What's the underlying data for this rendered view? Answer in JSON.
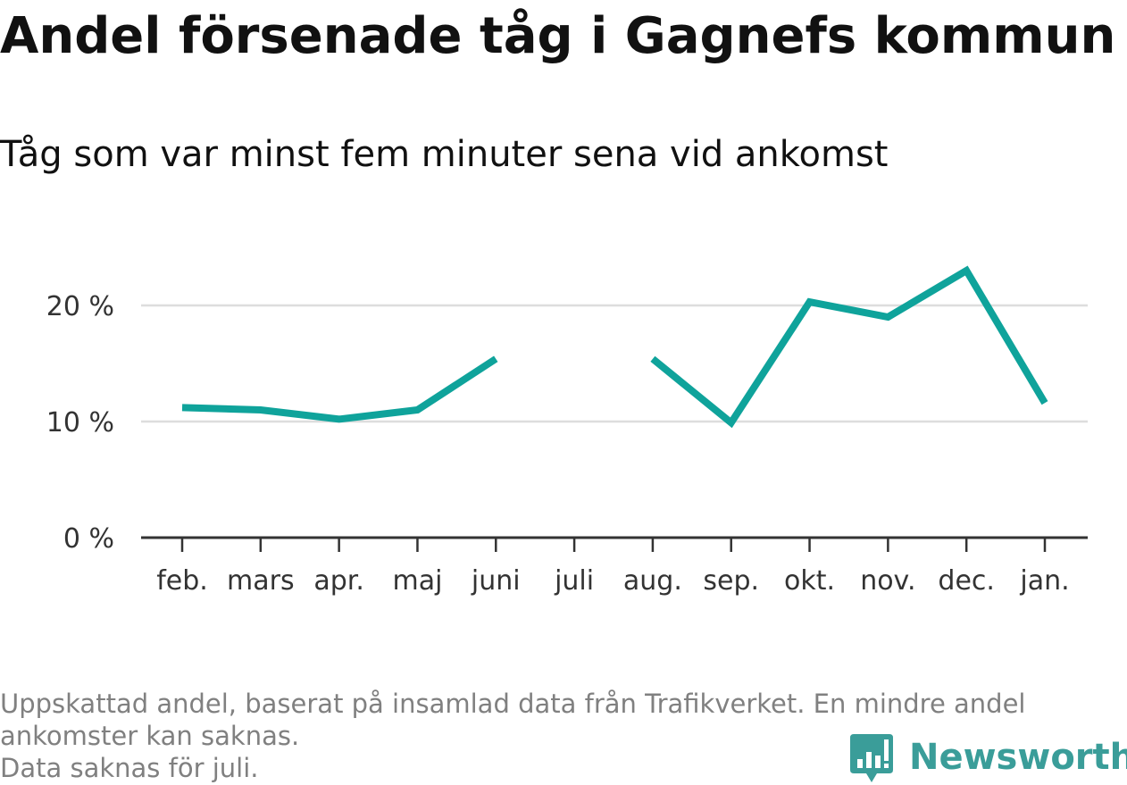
{
  "header": {
    "title": "Andel försenade tåg i Gagnefs kommun",
    "subtitle": "Tåg som var minst fem minuter sena vid ankomst"
  },
  "colors": {
    "line": "#0fa39b",
    "grid": "#dddddd",
    "axis": "#333333",
    "brand": "#3a9d99"
  },
  "chart_data": {
    "type": "line",
    "categories": [
      "feb.",
      "mars",
      "apr.",
      "maj",
      "juni",
      "juli",
      "aug.",
      "sep.",
      "okt.",
      "nov.",
      "dec.",
      "jan."
    ],
    "series": [
      {
        "values": [
          11.2,
          11.0,
          10.2,
          11.0,
          15.4,
          null,
          15.4,
          9.9,
          20.3,
          19.0,
          23.0,
          11.6
        ]
      }
    ],
    "ylim": [
      0,
      25
    ],
    "yticks": [
      0,
      10,
      20
    ],
    "ytick_labels": [
      "0 %",
      "10 %",
      "20 %"
    ],
    "grid": true,
    "xlabel": "",
    "ylabel": ""
  },
  "footnote": {
    "line1": "Uppskattad andel, baserat på insamlad data från Trafikverket. En mindre andel",
    "line2": "ankomster kan saknas.",
    "line3": "Data saknas för juli."
  },
  "brand": {
    "name": "Newsworthy",
    "logo_icon": "bar-chart-speech-bubble-icon"
  }
}
